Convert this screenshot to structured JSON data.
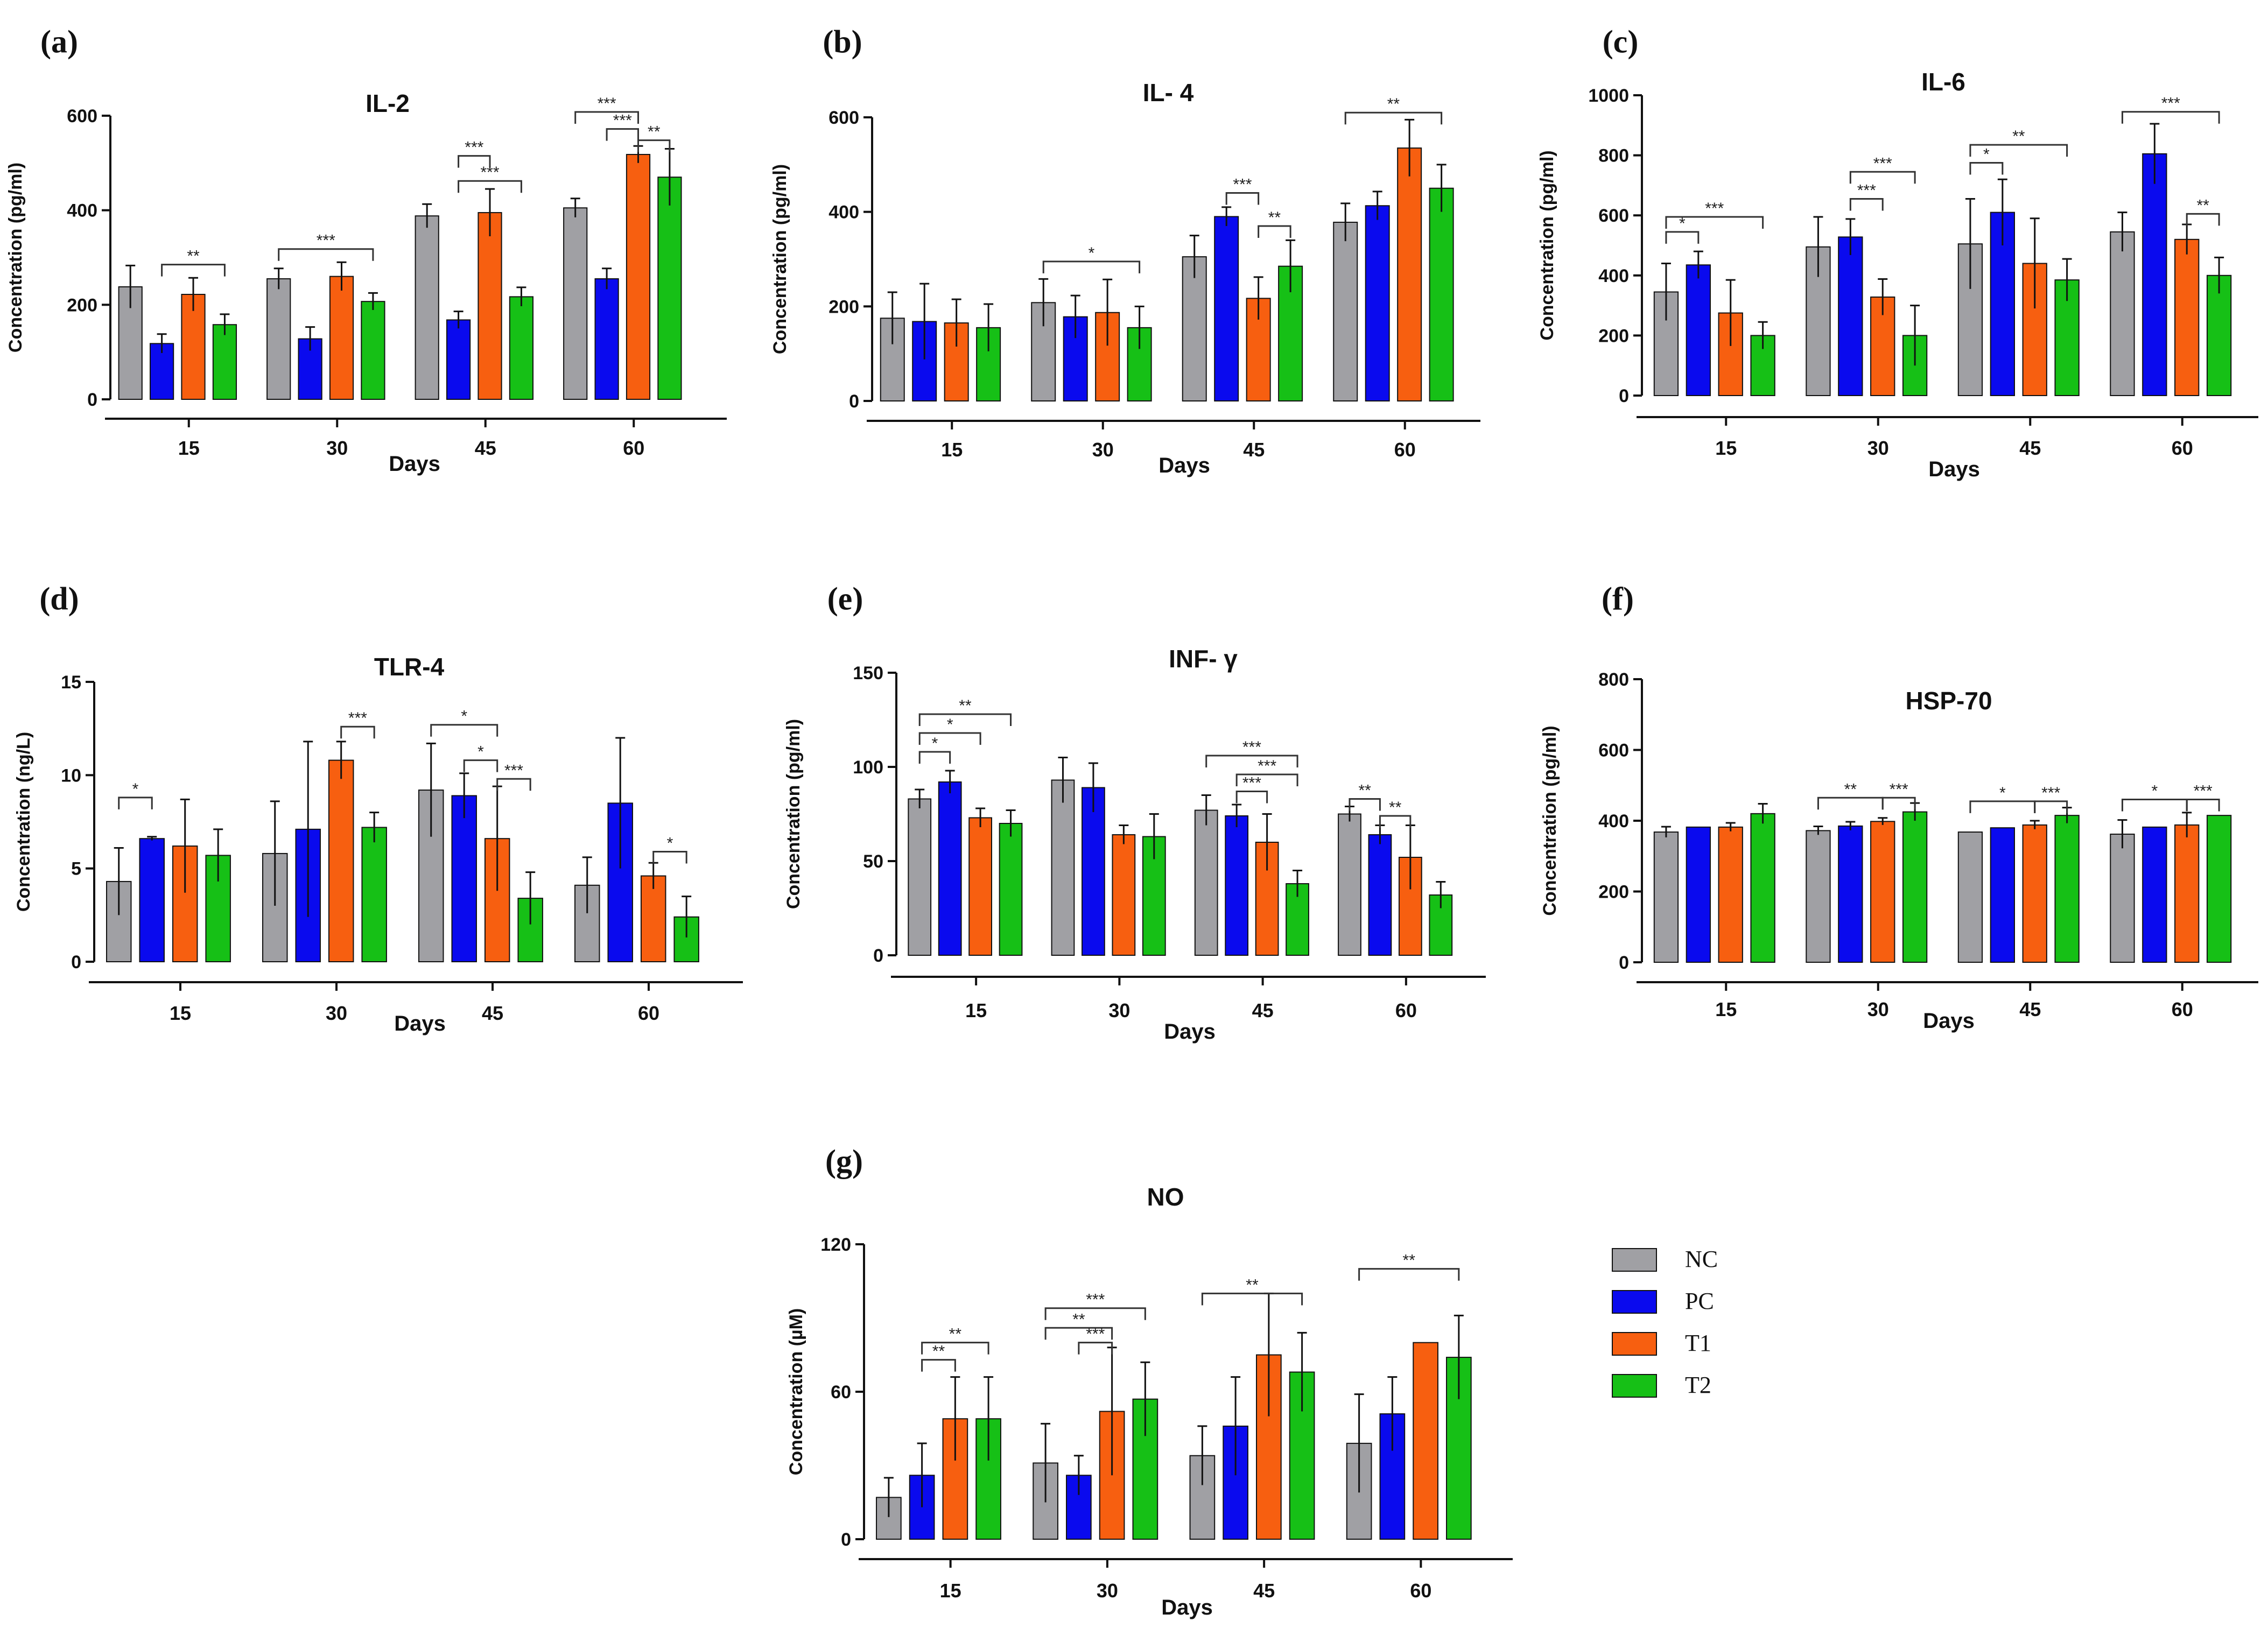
{
  "figure": {
    "xlabel": "Days",
    "ylabel_default": "Concentration (pg/ml)",
    "groups": [
      "NC",
      "PC",
      "T1",
      "T2"
    ],
    "colors": {
      "NC": "#A0A0A4",
      "PC": "#0A0AEE",
      "T1": "#F75F10",
      "T2": "#16C016"
    }
  },
  "legend": {
    "items": [
      {
        "name": "NC",
        "color": "#A0A0A4"
      },
      {
        "name": "PC",
        "color": "#0A0AEE"
      },
      {
        "name": "T1",
        "color": "#F75F10"
      },
      {
        "name": "T2",
        "color": "#16C016"
      }
    ]
  },
  "chart_data": [
    {
      "type": "bar",
      "panel": "(a)",
      "title": "IL-2",
      "xlabel": "Days",
      "ylabel": "Concentration (pg/ml)",
      "ylim": [
        0,
        600
      ],
      "yticks": [
        0,
        200,
        400,
        600
      ],
      "categories": [
        "15",
        "30",
        "45",
        "60"
      ],
      "series": [
        {
          "name": "NC",
          "values": [
            238,
            255,
            388,
            405
          ],
          "errors": [
            45,
            22,
            25,
            20
          ]
        },
        {
          "name": "PC",
          "values": [
            118,
            128,
            168,
            255
          ],
          "errors": [
            20,
            25,
            18,
            22
          ]
        },
        {
          "name": "T1",
          "values": [
            222,
            260,
            395,
            518
          ],
          "errors": [
            35,
            30,
            50,
            18
          ]
        },
        {
          "name": "T2",
          "values": [
            158,
            207,
            217,
            470
          ],
          "errors": [
            22,
            18,
            20,
            60
          ]
        }
      ],
      "significance": [
        {
          "cat": 0,
          "from": 1,
          "to": 3,
          "y": 285,
          "label": "**"
        },
        {
          "cat": 1,
          "from": 0,
          "to": 3,
          "y": 318,
          "label": "***"
        },
        {
          "cat": 2,
          "from": 1,
          "to": 2,
          "y": 515,
          "label": "***"
        },
        {
          "cat": 2,
          "from": 1,
          "to": 3,
          "y": 462,
          "label": "***"
        },
        {
          "cat": 3,
          "from": 0,
          "to": 2,
          "y": 608,
          "label": "***"
        },
        {
          "cat": 3,
          "from": 1,
          "to": 2,
          "y": 572,
          "label": "***"
        },
        {
          "cat": 3,
          "from": 2,
          "to": 3,
          "y": 548,
          "label": "**"
        }
      ]
    },
    {
      "type": "bar",
      "panel": "(b)",
      "title": "IL- 4",
      "xlabel": "Days",
      "ylabel": "Concentration (pg/ml)",
      "ylim": [
        0,
        600
      ],
      "yticks": [
        0,
        200,
        400,
        600
      ],
      "categories": [
        "15",
        "30",
        "45",
        "60"
      ],
      "series": [
        {
          "name": "NC",
          "values": [
            175,
            208,
            305,
            378
          ],
          "errors": [
            55,
            50,
            45,
            40
          ]
        },
        {
          "name": "PC",
          "values": [
            168,
            178,
            390,
            413
          ],
          "errors": [
            80,
            45,
            20,
            30
          ]
        },
        {
          "name": "T1",
          "values": [
            165,
            187,
            217,
            535
          ],
          "errors": [
            50,
            70,
            45,
            60
          ]
        },
        {
          "name": "T2",
          "values": [
            155,
            155,
            285,
            450
          ],
          "errors": [
            50,
            45,
            55,
            50
          ]
        }
      ],
      "significance": [
        {
          "cat": 1,
          "from": 0,
          "to": 3,
          "y": 295,
          "label": "*"
        },
        {
          "cat": 2,
          "from": 1,
          "to": 2,
          "y": 440,
          "label": "***"
        },
        {
          "cat": 2,
          "from": 2,
          "to": 3,
          "y": 370,
          "label": "**"
        },
        {
          "cat": 3,
          "from": 0,
          "to": 3,
          "y": 610,
          "label": "**"
        }
      ]
    },
    {
      "type": "bar",
      "panel": "(c)",
      "title": "IL-6",
      "xlabel": "Days",
      "ylabel": "Concentration (pg/ml)",
      "ylim": [
        0,
        1000
      ],
      "yticks": [
        0,
        200,
        400,
        600,
        800,
        1000
      ],
      "categories": [
        "15",
        "30",
        "45",
        "60"
      ],
      "series": [
        {
          "name": "NC",
          "values": [
            345,
            495,
            505,
            545
          ],
          "errors": [
            95,
            100,
            150,
            65
          ]
        },
        {
          "name": "PC",
          "values": [
            435,
            528,
            610,
            805
          ],
          "errors": [
            45,
            60,
            110,
            100
          ]
        },
        {
          "name": "T1",
          "values": [
            275,
            328,
            440,
            520
          ],
          "errors": [
            110,
            60,
            150,
            50
          ]
        },
        {
          "name": "T2",
          "values": [
            200,
            200,
            385,
            400
          ],
          "errors": [
            45,
            100,
            70,
            60
          ]
        }
      ],
      "significance": [
        {
          "cat": 0,
          "from": 0,
          "to": 1,
          "y": 545,
          "label": "*"
        },
        {
          "cat": 0,
          "from": 0,
          "to": 3,
          "y": 595,
          "label": "***"
        },
        {
          "cat": 1,
          "from": 1,
          "to": 2,
          "y": 655,
          "label": "***"
        },
        {
          "cat": 1,
          "from": 1,
          "to": 3,
          "y": 745,
          "label": "***"
        },
        {
          "cat": 2,
          "from": 0,
          "to": 1,
          "y": 775,
          "label": "*"
        },
        {
          "cat": 2,
          "from": 0,
          "to": 3,
          "y": 835,
          "label": "**"
        },
        {
          "cat": 3,
          "from": 0,
          "to": 3,
          "y": 945,
          "label": "***"
        },
        {
          "cat": 3,
          "from": 2,
          "to": 3,
          "y": 605,
          "label": "**"
        }
      ]
    },
    {
      "type": "bar",
      "panel": "(d)",
      "title": "TLR-4",
      "xlabel": "Days",
      "ylabel": "Concentration (ng/L)",
      "ylim": [
        0,
        15
      ],
      "yticks": [
        0,
        5,
        10,
        15
      ],
      "categories": [
        "15",
        "30",
        "45",
        "60"
      ],
      "series": [
        {
          "name": "NC",
          "values": [
            4.3,
            5.8,
            9.2,
            4.1
          ],
          "errors": [
            1.8,
            2.8,
            2.5,
            1.5
          ]
        },
        {
          "name": "PC",
          "values": [
            6.6,
            7.1,
            8.9,
            8.5
          ],
          "errors": [
            0.1,
            4.7,
            1.2,
            3.5
          ]
        },
        {
          "name": "T1",
          "values": [
            6.2,
            10.8,
            6.6,
            4.6
          ],
          "errors": [
            2.5,
            1.0,
            2.8,
            0.7
          ]
        },
        {
          "name": "T2",
          "values": [
            5.7,
            7.2,
            3.4,
            2.4
          ],
          "errors": [
            1.4,
            0.8,
            1.4,
            1.1
          ]
        }
      ],
      "significance": [
        {
          "cat": 0,
          "from": 0,
          "to": 1,
          "y": 8.8,
          "label": "*"
        },
        {
          "cat": 1,
          "from": 2,
          "to": 3,
          "y": 12.6,
          "label": "***"
        },
        {
          "cat": 2,
          "from": 0,
          "to": 2,
          "y": 12.7,
          "label": "*"
        },
        {
          "cat": 2,
          "from": 1,
          "to": 2,
          "y": 10.8,
          "label": "*"
        },
        {
          "cat": 2,
          "from": 2,
          "to": 3,
          "y": 9.8,
          "label": "***"
        },
        {
          "cat": 3,
          "from": 2,
          "to": 3,
          "y": 5.9,
          "label": "*"
        }
      ]
    },
    {
      "type": "bar",
      "panel": "(e)",
      "title": "INF- γ",
      "xlabel": "Days",
      "ylabel": "Concentration (pg/ml)",
      "ylim": [
        0,
        150
      ],
      "yticks": [
        0,
        50,
        100,
        150
      ],
      "categories": [
        "15",
        "30",
        "45",
        "60"
      ],
      "series": [
        {
          "name": "NC",
          "values": [
            83,
            93,
            77,
            75
          ],
          "errors": [
            5,
            12,
            8,
            4
          ]
        },
        {
          "name": "PC",
          "values": [
            92,
            89,
            74,
            64
          ],
          "errors": [
            6,
            13,
            6,
            5
          ]
        },
        {
          "name": "T1",
          "values": [
            73,
            64,
            60,
            52
          ],
          "errors": [
            5,
            5,
            15,
            17
          ]
        },
        {
          "name": "T2",
          "values": [
            70,
            63,
            38,
            32
          ],
          "errors": [
            7,
            12,
            7,
            7
          ]
        }
      ],
      "significance": [
        {
          "cat": 0,
          "from": 0,
          "to": 1,
          "y": 108,
          "label": "*"
        },
        {
          "cat": 0,
          "from": 0,
          "to": 2,
          "y": 118,
          "label": "*"
        },
        {
          "cat": 0,
          "from": 0,
          "to": 3,
          "y": 128,
          "label": "**"
        },
        {
          "cat": 2,
          "from": 0,
          "to": 3,
          "y": 106,
          "label": "***"
        },
        {
          "cat": 2,
          "from": 1,
          "to": 2,
          "y": 87,
          "label": "***"
        },
        {
          "cat": 2,
          "from": 1,
          "to": 3,
          "y": 96,
          "label": "***"
        },
        {
          "cat": 3,
          "from": 0,
          "to": 1,
          "y": 83,
          "label": "**"
        },
        {
          "cat": 3,
          "from": 1,
          "to": 2,
          "y": 74,
          "label": "**"
        }
      ]
    },
    {
      "type": "bar",
      "panel": "(f)",
      "title": "HSP-70",
      "xlabel": "Days",
      "ylabel": "Concentration (pg/ml)",
      "ylim": [
        0,
        800
      ],
      "yticks": [
        0,
        200,
        400,
        600,
        800
      ],
      "categories": [
        "15",
        "30",
        "45",
        "60"
      ],
      "series": [
        {
          "name": "NC",
          "values": [
            368,
            372,
            368,
            362
          ],
          "errors": [
            15,
            12,
            0,
            40
          ]
        },
        {
          "name": "PC",
          "values": [
            382,
            385,
            380,
            382
          ],
          "errors": [
            0,
            12,
            0,
            0
          ]
        },
        {
          "name": "T1",
          "values": [
            382,
            398,
            388,
            388
          ],
          "errors": [
            12,
            10,
            12,
            35
          ]
        },
        {
          "name": "T2",
          "values": [
            420,
            425,
            415,
            415
          ],
          "errors": [
            28,
            25,
            22,
            0
          ]
        }
      ],
      "significance": [
        {
          "cat": 1,
          "from": 0,
          "to": 2,
          "y": 465,
          "label": "**"
        },
        {
          "cat": 1,
          "from": 2,
          "to": 3,
          "y": 465,
          "label": "***"
        },
        {
          "cat": 2,
          "from": 0,
          "to": 2,
          "y": 455,
          "label": "*"
        },
        {
          "cat": 2,
          "from": 2,
          "to": 3,
          "y": 455,
          "label": "***"
        },
        {
          "cat": 3,
          "from": 0,
          "to": 2,
          "y": 460,
          "label": "*"
        },
        {
          "cat": 3,
          "from": 2,
          "to": 3,
          "y": 460,
          "label": "***"
        }
      ]
    },
    {
      "type": "bar",
      "panel": "(g)",
      "title": "NO",
      "xlabel": "Days",
      "ylabel": "Concentration (µM)",
      "ylim": [
        0,
        120
      ],
      "yticks": [
        0,
        60,
        120
      ],
      "categories": [
        "15",
        "30",
        "45",
        "60"
      ],
      "series": [
        {
          "name": "NC",
          "values": [
            17,
            31,
            34,
            39
          ],
          "errors": [
            8,
            16,
            12,
            20
          ]
        },
        {
          "name": "PC",
          "values": [
            26,
            26,
            46,
            51
          ],
          "errors": [
            13,
            8,
            20,
            15
          ]
        },
        {
          "name": "T1",
          "values": [
            49,
            52,
            75,
            80
          ],
          "errors": [
            17,
            26,
            25,
            0
          ]
        },
        {
          "name": "T2",
          "values": [
            49,
            57,
            68,
            74
          ],
          "errors": [
            17,
            15,
            16,
            17
          ]
        }
      ],
      "significance": [
        {
          "cat": 0,
          "from": 1,
          "to": 2,
          "y": 73,
          "label": "**"
        },
        {
          "cat": 0,
          "from": 1,
          "to": 3,
          "y": 80,
          "label": "**"
        },
        {
          "cat": 1,
          "from": 0,
          "to": 2,
          "y": 86,
          "label": "**"
        },
        {
          "cat": 1,
          "from": 0,
          "to": 3,
          "y": 94,
          "label": "***"
        },
        {
          "cat": 1,
          "from": 1,
          "to": 2,
          "y": 80,
          "label": "***"
        },
        {
          "cat": 2,
          "from": 0,
          "to": 3,
          "y": 100,
          "label": "**"
        },
        {
          "cat": 3,
          "from": 0,
          "to": 3,
          "y": 110,
          "label": "**"
        }
      ]
    }
  ]
}
